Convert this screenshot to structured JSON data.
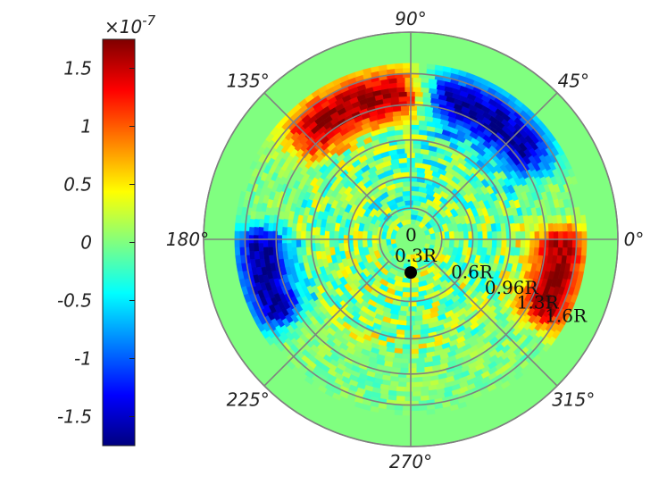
{
  "chart_data": {
    "type": "heatmap",
    "projection": "polar",
    "colormap": "jet",
    "grid": true,
    "background_color": "#80ff80",
    "grid_color": "#808080",
    "angle_ticks": [
      {
        "angle": 0,
        "label": "0°"
      },
      {
        "angle": 45,
        "label": "45°"
      },
      {
        "angle": 90,
        "label": "90°"
      },
      {
        "angle": 135,
        "label": "135°"
      },
      {
        "angle": 180,
        "label": "180°"
      },
      {
        "angle": 225,
        "label": "225°"
      },
      {
        "angle": 270,
        "label": "270°"
      },
      {
        "angle": 315,
        "label": "315°"
      }
    ],
    "radius_ticks": [
      {
        "r": 0,
        "label": "0"
      },
      {
        "r": 0.3,
        "label": "0.3R"
      },
      {
        "r": 0.6,
        "label": "0.6R"
      },
      {
        "r": 0.96,
        "label": "0.96R"
      },
      {
        "r": 1.3,
        "label": "1.3R"
      },
      {
        "r": 1.6,
        "label": "1.6R"
      }
    ],
    "rlim": [
      0,
      2.0
    ],
    "data_region_rlim": [
      0.15,
      1.7
    ],
    "marker": {
      "label": "source point",
      "angle_deg": 270,
      "r": 0.32,
      "color": "#000000"
    },
    "lobes": [
      {
        "angle_center": 112,
        "angle_width": 62,
        "r_peak": 1.4,
        "amplitude": 1.7
      },
      {
        "angle_center": 58,
        "angle_width": 62,
        "r_peak": 1.4,
        "amplitude": -1.7
      },
      {
        "angle_center": 195,
        "angle_width": 40,
        "r_peak": 1.45,
        "amplitude": -1.7
      },
      {
        "angle_center": 345,
        "angle_width": 40,
        "r_peak": 1.45,
        "amplitude": 1.7
      }
    ],
    "colorbar": {
      "limits": [
        -1.75,
        1.75
      ],
      "exponent_label": "×10",
      "exponent": "-7",
      "ticks": [
        {
          "value": 1.5,
          "label": "1.5"
        },
        {
          "value": 1,
          "label": "1"
        },
        {
          "value": 0.5,
          "label": "0.5"
        },
        {
          "value": 0,
          "label": "0"
        },
        {
          "value": -0.5,
          "label": "-0.5"
        },
        {
          "value": -1,
          "label": "-1"
        },
        {
          "value": -1.5,
          "label": "-1.5"
        }
      ]
    }
  }
}
